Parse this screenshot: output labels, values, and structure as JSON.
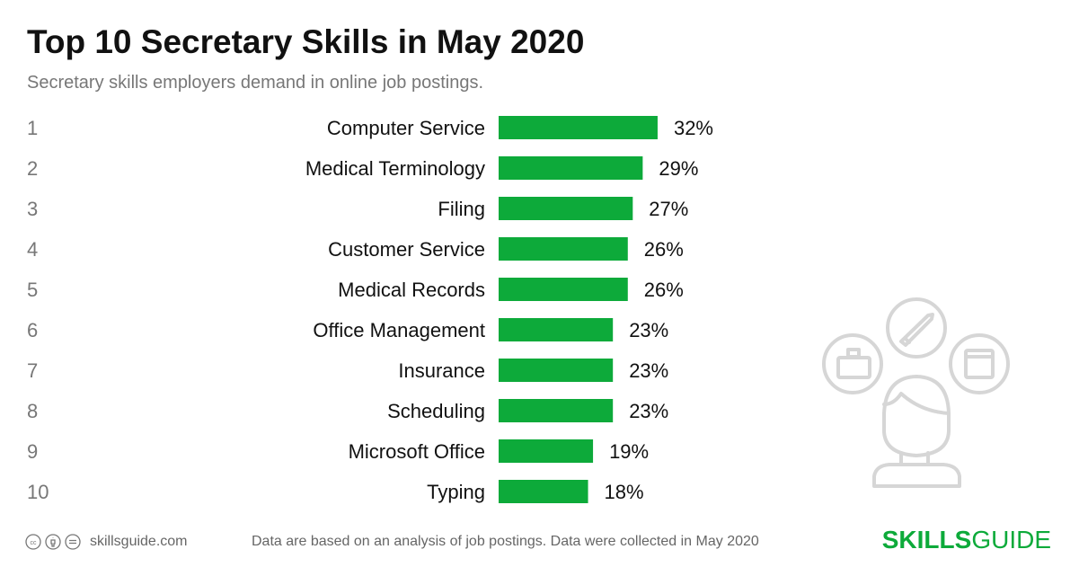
{
  "title": "Top 10 Secretary Skills in May 2020",
  "subtitle": "Secretary skills employers demand in online job postings.",
  "chart_data": {
    "type": "bar",
    "orientation": "horizontal",
    "ranks": [
      "1",
      "2",
      "3",
      "4",
      "5",
      "6",
      "7",
      "8",
      "9",
      "10"
    ],
    "categories": [
      "Computer Service",
      "Medical Terminology",
      "Filing",
      "Customer Service",
      "Medical Records",
      "Office Management",
      "Insurance",
      "Scheduling",
      "Microsoft Office",
      "Typing"
    ],
    "values": [
      32,
      29,
      27,
      26,
      26,
      23,
      23,
      23,
      19,
      18
    ],
    "labels": [
      "32%",
      "29%",
      "27%",
      "26%",
      "26%",
      "23%",
      "23%",
      "23%",
      "19%",
      "18%"
    ],
    "bar_color": "#0daa3a",
    "grid": false
  },
  "footer": {
    "site": "skillsguide.com",
    "note": "Data are based on an analysis of job postings. Data were collected in May 2020",
    "logo_bold": "SKILLS",
    "logo_light": "GUIDE",
    "license_icons": [
      "cc-icon",
      "by-icon",
      "nd-icon"
    ]
  }
}
